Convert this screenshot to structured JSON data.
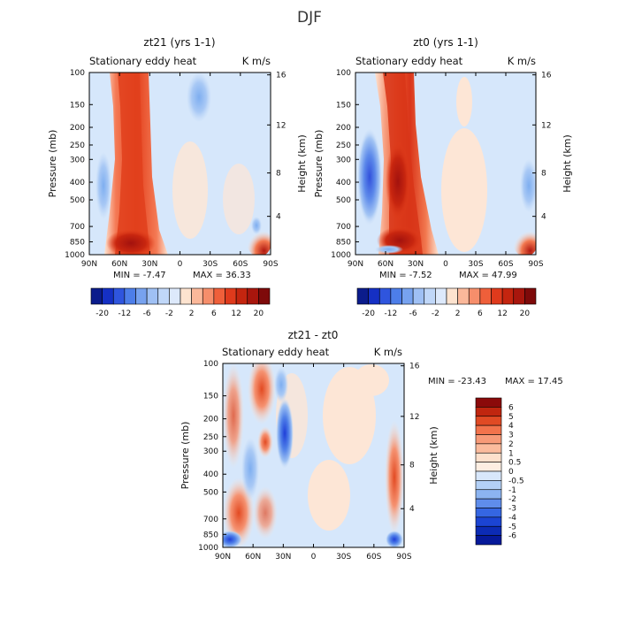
{
  "figure_title": "DJF",
  "chart_data": [
    {
      "type": "heatmap",
      "title": "zt21 (yrs 1-1)",
      "left_label": "Stationary eddy heat",
      "right_label": "K m/s",
      "xlabel": "",
      "ylabel": "Pressure (mb)",
      "ylabel_right": "Height (km)",
      "x_ticks": [
        "90N",
        "60N",
        "30N",
        "0",
        "30S",
        "60S",
        "90S"
      ],
      "y_ticks": [
        "100",
        "150",
        "200",
        "250",
        "300",
        "400",
        "500",
        "700",
        "850",
        "1000"
      ],
      "height_ticks": [
        "4",
        "8",
        "12",
        "16"
      ],
      "min_label": "MIN = -7.47",
      "max_label": "MAX = 36.33",
      "colorbar_levels": [
        "-20",
        "-12",
        "-6",
        "-2",
        "2",
        "6",
        "12",
        "20"
      ],
      "field_features": [
        {
          "kind": "positive core",
          "lat_range": "75N-45N",
          "pressure_range": "1000-100 mb",
          "max_value": 36.33
        },
        {
          "kind": "negative",
          "lat_range": "80N-70N",
          "pressure_range": "400-300 mb"
        },
        {
          "kind": "positive",
          "lat_range": "85S-90S",
          "pressure_range": "1000-850 mb"
        }
      ]
    },
    {
      "type": "heatmap",
      "title": "zt0 (yrs 1-1)",
      "left_label": "Stationary eddy heat",
      "right_label": "K m/s",
      "xlabel": "",
      "ylabel": "Pressure (mb)",
      "ylabel_right": "Height (km)",
      "x_ticks": [
        "90N",
        "60N",
        "30N",
        "0",
        "30S",
        "60S",
        "90S"
      ],
      "y_ticks": [
        "100",
        "150",
        "200",
        "250",
        "300",
        "400",
        "500",
        "700",
        "850",
        "1000"
      ],
      "height_ticks": [
        "4",
        "8",
        "12",
        "16"
      ],
      "min_label": "MIN = -7.52",
      "max_label": "MAX = 47.99",
      "colorbar_levels": [
        "-20",
        "-12",
        "-6",
        "-2",
        "2",
        "6",
        "12",
        "20"
      ],
      "field_features": [
        {
          "kind": "positive core",
          "lat_range": "70N-40N",
          "pressure_range": "1000-100 mb",
          "max_value": 47.99
        },
        {
          "kind": "negative",
          "lat_range": "85N-75N",
          "pressure_range": "500-250 mb"
        },
        {
          "kind": "positive",
          "lat_range": "85S-90S",
          "pressure_range": "1000-850 mb"
        }
      ]
    },
    {
      "type": "heatmap",
      "title": "zt21 - zt0",
      "left_label": "Stationary eddy heat",
      "right_label": "K m/s",
      "xlabel": "",
      "ylabel": "Pressure (mb)",
      "ylabel_right": "Height (km)",
      "x_ticks": [
        "90N",
        "60N",
        "30N",
        "0",
        "30S",
        "60S",
        "90S"
      ],
      "y_ticks": [
        "100",
        "150",
        "200",
        "250",
        "300",
        "400",
        "500",
        "700",
        "850",
        "1000"
      ],
      "height_ticks": [
        "4",
        "8",
        "12",
        "16"
      ],
      "min_label": "MIN = -23.43",
      "max_label": "MAX =   17.45",
      "colorbar_levels": [
        "6",
        "5",
        "4",
        "3",
        "2",
        "1",
        "0.5",
        "0",
        "-0.5",
        "-1",
        "-2",
        "-3",
        "-4",
        "-5",
        "-6"
      ],
      "field_features": [
        {
          "kind": "positive",
          "lat_range": "60N-50N",
          "pressure_range": "500-100 mb"
        },
        {
          "kind": "negative",
          "lat_range": "35N-25N",
          "pressure_range": "500-150 mb"
        },
        {
          "kind": "negative",
          "lat_range": "90N-80N",
          "pressure_range": "1000-850 mb",
          "min_value": -23.43
        },
        {
          "kind": "positive",
          "lat_range": "75S-85S",
          "pressure_range": "700-200 mb",
          "max_value": 17.45
        }
      ]
    }
  ]
}
